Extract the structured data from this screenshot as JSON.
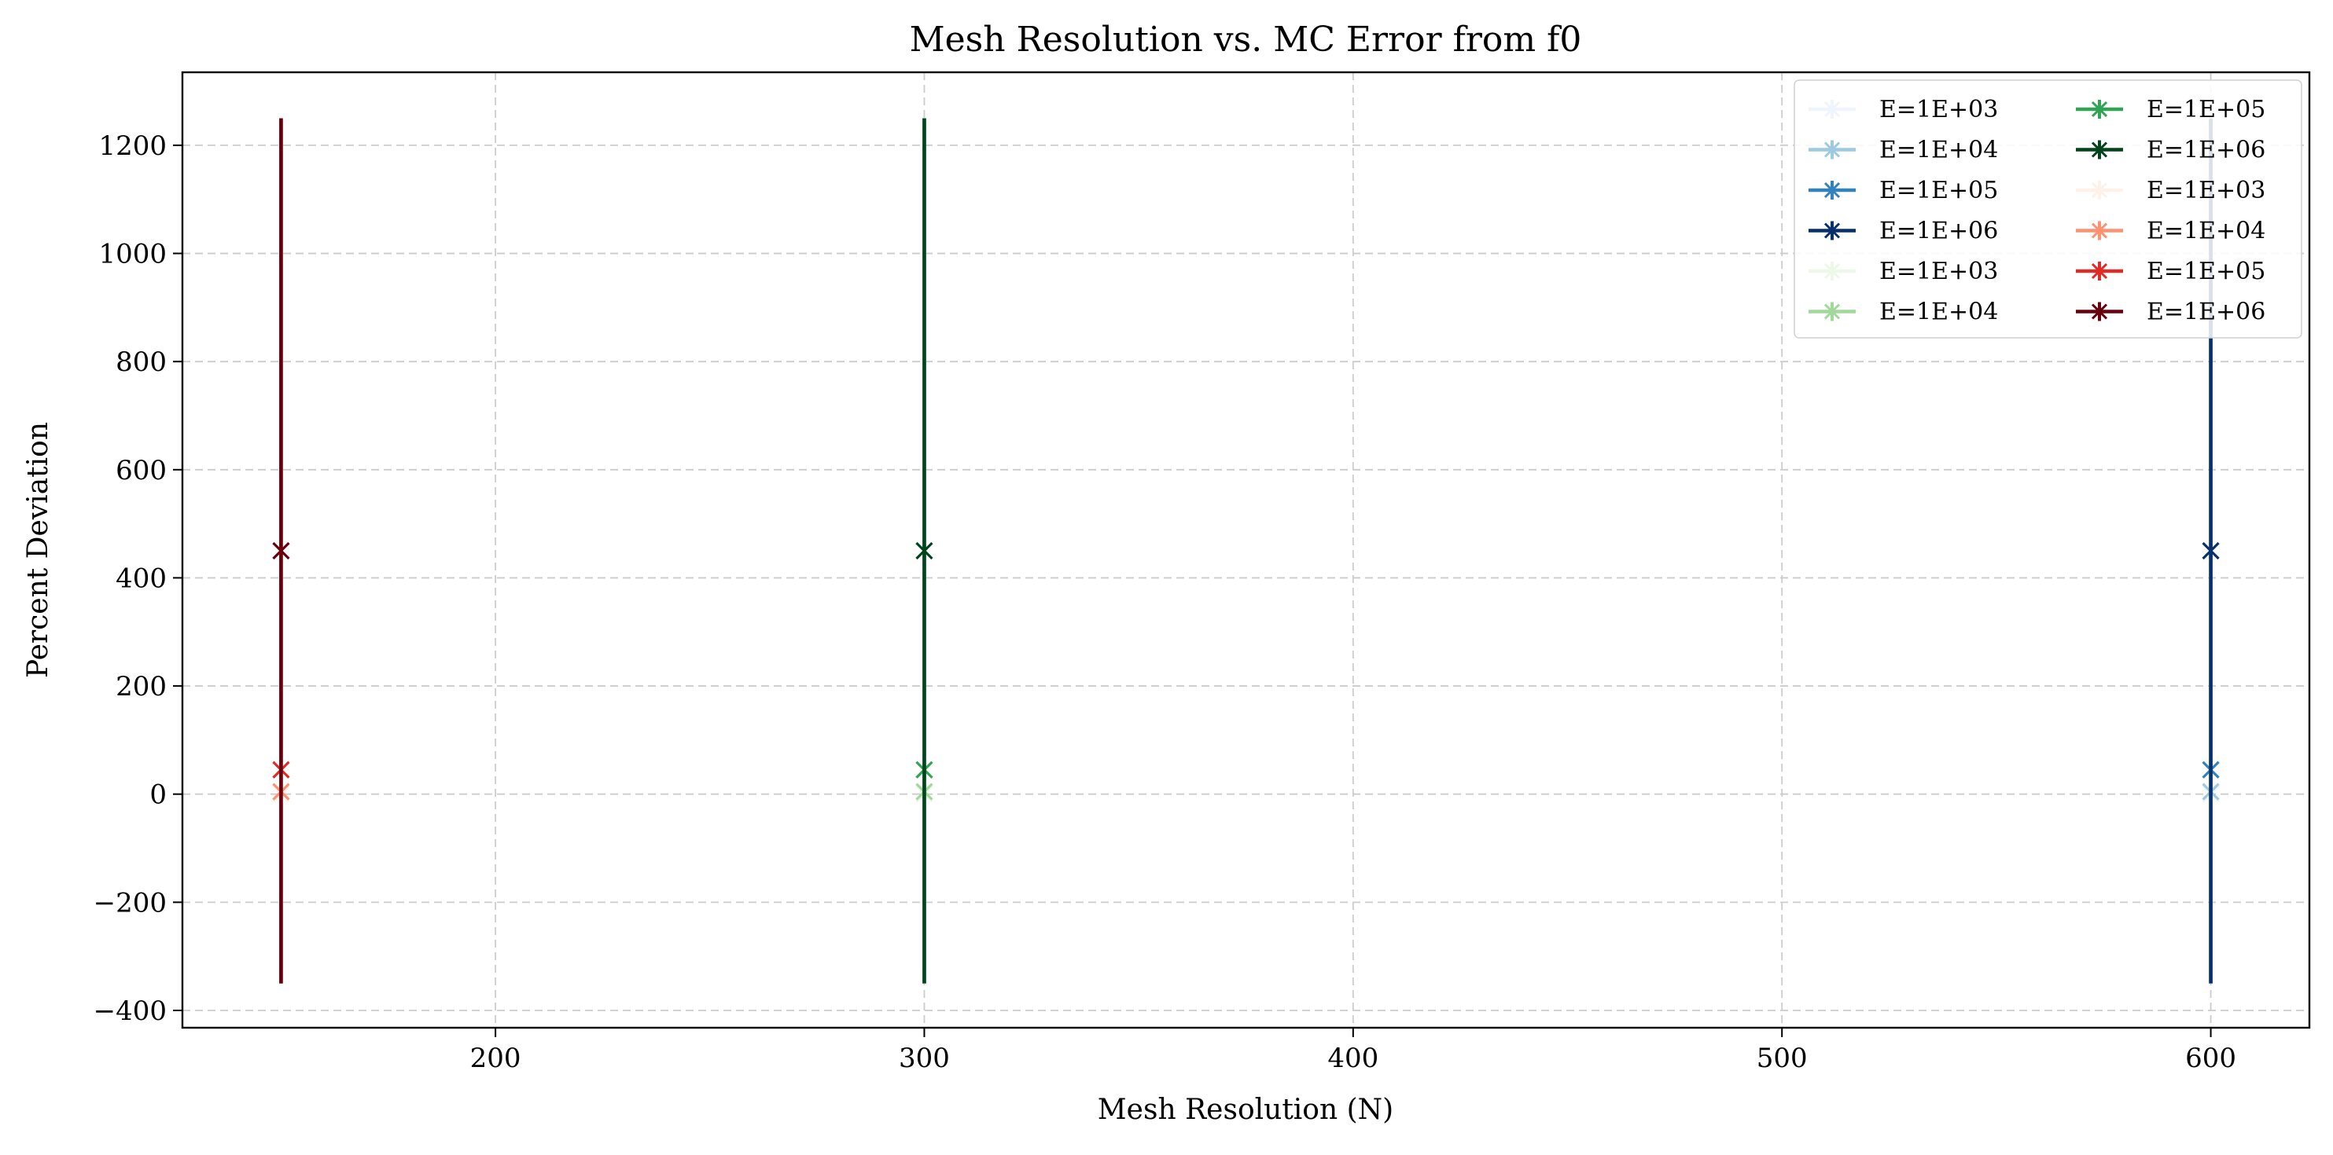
{
  "chart_data": {
    "type": "scatter",
    "title": "Mesh Resolution vs. MC Error from f0",
    "xlabel": "Mesh Resolution (N)",
    "ylabel": "Percent Deviation",
    "xlim": [
      127,
      623
    ],
    "ylim": [
      -432,
      1335
    ],
    "xticks": [
      {
        "value": 200,
        "label": "200"
      },
      {
        "value": 300,
        "label": "300"
      },
      {
        "value": 400,
        "label": "400"
      },
      {
        "value": 500,
        "label": "500"
      },
      {
        "value": 600,
        "label": "600"
      }
    ],
    "yticks": [
      {
        "value": -400,
        "label": "−400"
      },
      {
        "value": -200,
        "label": "−200"
      },
      {
        "value": 0,
        "label": "0"
      },
      {
        "value": 200,
        "label": "200"
      },
      {
        "value": 400,
        "label": "400"
      },
      {
        "value": 600,
        "label": "600"
      },
      {
        "value": 800,
        "label": "800"
      },
      {
        "value": 1000,
        "label": "1000"
      },
      {
        "value": 1200,
        "label": "1200"
      }
    ],
    "grid": true,
    "legend_position": "top-right",
    "legend_columns": 2,
    "marker": "x",
    "series": [
      {
        "name": "E=1E+03",
        "color": "#eef5fc",
        "x": 600,
        "y": 0.45,
        "err_low": -350,
        "err_high": 1250
      },
      {
        "name": "E=1E+04",
        "color": "#9ecae1",
        "x": 600,
        "y": 4.5,
        "err_low": -350,
        "err_high": 1250
      },
      {
        "name": "E=1E+05",
        "color": "#3182bd",
        "x": 600,
        "y": 45,
        "err_low": -350,
        "err_high": 1250
      },
      {
        "name": "E=1E+06",
        "color": "#08306b",
        "x": 600,
        "y": 450,
        "err_low": -350,
        "err_high": 1250
      },
      {
        "name": "E=1E+03",
        "color": "#edf8e9",
        "x": 300,
        "y": 0.45,
        "err_low": -350,
        "err_high": 1250
      },
      {
        "name": "E=1E+04",
        "color": "#a1d99b",
        "x": 300,
        "y": 4.5,
        "err_low": -350,
        "err_high": 1250
      },
      {
        "name": "E=1E+05",
        "color": "#31a354",
        "x": 300,
        "y": 45,
        "err_low": -350,
        "err_high": 1250
      },
      {
        "name": "E=1E+06",
        "color": "#00441b",
        "x": 300,
        "y": 450,
        "err_low": -350,
        "err_high": 1250
      },
      {
        "name": "E=1E+03",
        "color": "#fff1e8",
        "x": 150,
        "y": 0.45,
        "err_low": -350,
        "err_high": 1250
      },
      {
        "name": "E=1E+04",
        "color": "#fc9272",
        "x": 150,
        "y": 4.5,
        "err_low": -350,
        "err_high": 1250
      },
      {
        "name": "E=1E+05",
        "color": "#de2d26",
        "x": 150,
        "y": 45,
        "err_low": -350,
        "err_high": 1250
      },
      {
        "name": "E=1E+06",
        "color": "#67000d",
        "x": 150,
        "y": 450,
        "err_low": -350,
        "err_high": 1250
      }
    ]
  }
}
